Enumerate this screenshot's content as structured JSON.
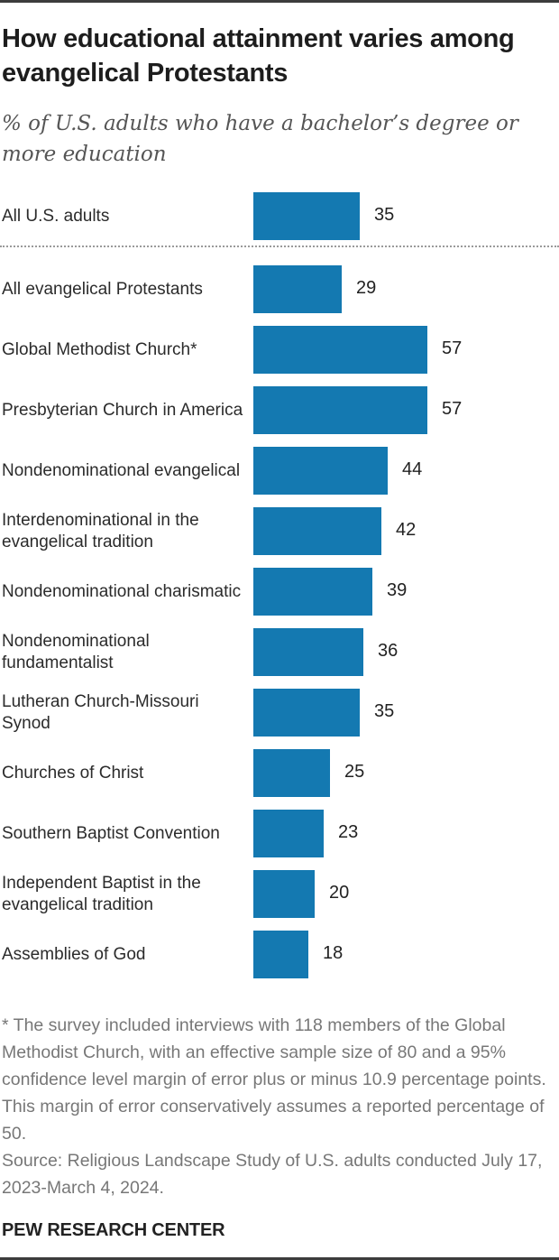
{
  "header": {
    "title": "How educational attainment varies among evangelical Protestants",
    "subtitle": "% of U.S. adults who have a bachelor’s degree or more education"
  },
  "rows": [
    {
      "label": "All U.S. adults",
      "value": "35"
    },
    {
      "label": "All evangelical Protestants",
      "value": "29"
    },
    {
      "label": "Global Methodist Church*",
      "value": "57"
    },
    {
      "label": "Presbyterian Church in America",
      "value": "57"
    },
    {
      "label": "Nondenominational evangelical",
      "value": "44"
    },
    {
      "label": "Interdenominational in the evangelical tradition",
      "value": "42"
    },
    {
      "label": "Nondenominational charismatic",
      "value": "39"
    },
    {
      "label": "Nondenominational fundamentalist",
      "value": "36"
    },
    {
      "label": "Lutheran Church-Missouri Synod",
      "value": "35"
    },
    {
      "label": "Churches of Christ",
      "value": "25"
    },
    {
      "label": "Southern Baptist Convention",
      "value": "23"
    },
    {
      "label": "Independent Baptist in the evangelical tradition",
      "value": "20"
    },
    {
      "label": "Assemblies of God",
      "value": "18"
    }
  ],
  "footer": {
    "note": "* The survey included interviews with 118 members of the Global Methodist Church, with an effective sample size of 80 and a 95% confidence level margin of error plus or minus 10.9 percentage points. This margin of error conservatively assumes a reported percentage of 50.",
    "source": "Source: Religious Landscape Study of U.S. adults conducted July 17, 2023-March 4, 2024.",
    "brand": "PEW RESEARCH CENTER"
  },
  "colors": {
    "bar": "#1479b1",
    "title": "#1d1d1d",
    "note": "#777777"
  },
  "chart_data": {
    "type": "bar",
    "orientation": "horizontal",
    "title": "How educational attainment varies among evangelical Protestants",
    "subtitle": "% of U.S. adults who have a bachelor’s degree or more education",
    "xlabel": "",
    "ylabel": "",
    "categories": [
      "All U.S. adults",
      "All evangelical Protestants",
      "Global Methodist Church*",
      "Presbyterian Church in America",
      "Nondenominational evangelical",
      "Interdenominational in the evangelical tradition",
      "Nondenominational charismatic",
      "Nondenominational fundamentalist",
      "Lutheran Church-Missouri Synod",
      "Churches of Christ",
      "Southern Baptist Convention",
      "Independent Baptist in the evangelical tradition",
      "Assemblies of God"
    ],
    "values": [
      35,
      29,
      57,
      57,
      44,
      42,
      39,
      36,
      35,
      25,
      23,
      20,
      18
    ],
    "data_labels": true,
    "grid": false,
    "legend": null,
    "annotations": [
      "Dotted separator between 'All U.S. adults' and the evangelical rows"
    ],
    "xlim": [
      0,
      100
    ]
  }
}
